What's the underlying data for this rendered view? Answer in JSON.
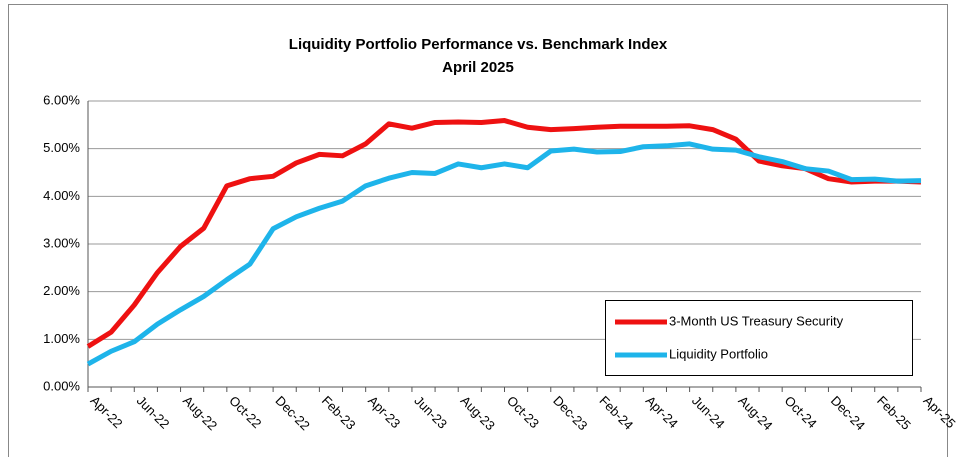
{
  "chart_data": {
    "type": "line",
    "title": "Liquidity Portfolio Performance vs. Benchmark Index",
    "subtitle": "April 2025",
    "categories": [
      "Apr-22",
      null,
      "Jun-22",
      null,
      "Aug-22",
      null,
      "Oct-22",
      null,
      "Dec-22",
      null,
      "Feb-23",
      null,
      "Apr-23",
      null,
      "Jun-23",
      null,
      "Aug-23",
      null,
      "Oct-23",
      null,
      "Dec-23",
      null,
      "Feb-24",
      null,
      "Apr-24",
      null,
      "Jun-24",
      null,
      "Aug-24",
      null,
      "Oct-24",
      null,
      "Dec-24",
      null,
      "Feb-25",
      null,
      "Apr-25"
    ],
    "series": [
      {
        "name": "3-Month US Treasury Security",
        "color": "#ee1111",
        "values": [
          0.85,
          1.15,
          1.72,
          2.4,
          2.95,
          3.33,
          4.22,
          4.37,
          4.42,
          4.7,
          4.88,
          4.85,
          5.1,
          5.52,
          5.43,
          5.55,
          5.56,
          5.55,
          5.59,
          5.45,
          5.4,
          5.42,
          5.45,
          5.47,
          5.47,
          5.47,
          5.48,
          5.4,
          5.2,
          4.74,
          4.64,
          4.58,
          4.37,
          4.3,
          4.32,
          4.32,
          4.3
        ]
      },
      {
        "name": "Liquidity Portfolio",
        "color": "#1eb4ea",
        "values": [
          0.48,
          0.75,
          0.95,
          1.32,
          1.62,
          1.9,
          2.25,
          2.58,
          3.32,
          3.57,
          3.75,
          3.9,
          4.22,
          4.38,
          4.5,
          4.48,
          4.68,
          4.6,
          4.68,
          4.6,
          4.95,
          4.99,
          4.93,
          4.94,
          5.04,
          5.06,
          5.1,
          4.99,
          4.97,
          4.83,
          4.73,
          4.58,
          4.53,
          4.35,
          4.36,
          4.32,
          4.33
        ]
      }
    ],
    "ylim": [
      0,
      6
    ],
    "yticks": [
      {
        "value": 0,
        "label": "0.00%"
      },
      {
        "value": 1,
        "label": "1.00%"
      },
      {
        "value": 2,
        "label": "2.00%"
      },
      {
        "value": 3,
        "label": "3.00%"
      },
      {
        "value": 4,
        "label": "4.00%"
      },
      {
        "value": 5,
        "label": "5.00%"
      },
      {
        "value": 6,
        "label": "6.00%"
      }
    ],
    "grid": true,
    "legend": "lower right"
  }
}
